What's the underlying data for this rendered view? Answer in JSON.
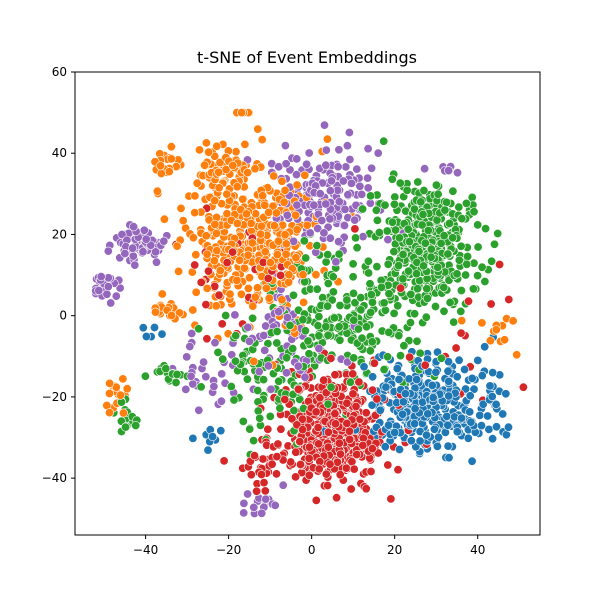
{
  "chart_data": {
    "type": "scatter",
    "title": "t-SNE of Event Embeddings",
    "xlabel": "",
    "ylabel": "",
    "xlim": [
      -57,
      55
    ],
    "ylim": [
      -54,
      60
    ],
    "xticks": [
      -40,
      -20,
      0,
      20,
      40
    ],
    "yticks": [
      -40,
      -20,
      0,
      20,
      40,
      60
    ],
    "tick_labels_x": [
      "−40",
      "−20",
      "0",
      "20",
      "40"
    ],
    "tick_labels_y": [
      "−40",
      "−20",
      "0",
      "20",
      "40",
      "60"
    ],
    "grid": false,
    "legend": "none",
    "series": [
      {
        "color": "#1f77b4",
        "clusters": [
          {
            "center": [
              27,
              -22
            ],
            "spread": [
              9,
              8
            ],
            "count": 330
          },
          {
            "center": [
              44,
              -20
            ],
            "spread": [
              3,
              5
            ],
            "count": 18
          },
          {
            "center": [
              -25,
              -30
            ],
            "spread": [
              3,
              3
            ],
            "count": 8
          },
          {
            "center": [
              -38,
              -4
            ],
            "spread": [
              2,
              2
            ],
            "count": 5
          }
        ]
      },
      {
        "color": "#ff7f0e",
        "clusters": [
          {
            "center": [
              -14,
              18
            ],
            "spread": [
              10,
              12
            ],
            "count": 430
          },
          {
            "center": [
              -22,
              35
            ],
            "spread": [
              5,
              5
            ],
            "count": 60
          },
          {
            "center": [
              -35,
              38
            ],
            "spread": [
              2,
              2
            ],
            "count": 20
          },
          {
            "center": [
              -16,
              52
            ],
            "spread": [
              1.5,
              1
            ],
            "count": 8
          },
          {
            "center": [
              -47,
              -20
            ],
            "spread": [
              2,
              3
            ],
            "count": 18
          },
          {
            "center": [
              -35,
              1
            ],
            "spread": [
              2.5,
              2
            ],
            "count": 16
          },
          {
            "center": [
              45,
              -4
            ],
            "spread": [
              4,
              4
            ],
            "count": 12
          }
        ]
      },
      {
        "color": "#2ca02c",
        "clusters": [
          {
            "center": [
              27,
              17
            ],
            "spread": [
              8,
              11
            ],
            "count": 380
          },
          {
            "center": [
              8,
              0
            ],
            "spread": [
              12,
              12
            ],
            "count": 220
          },
          {
            "center": [
              -10,
              -15
            ],
            "spread": [
              10,
              10
            ],
            "count": 90
          },
          {
            "center": [
              -35,
              -14
            ],
            "spread": [
              3,
              1.5
            ],
            "count": 16
          },
          {
            "center": [
              -44,
              -25
            ],
            "spread": [
              2,
              3
            ],
            "count": 14
          }
        ]
      },
      {
        "color": "#d62728",
        "clusters": [
          {
            "center": [
              5,
              -28
            ],
            "spread": [
              8,
              9
            ],
            "count": 460
          },
          {
            "center": [
              -12,
              -36
            ],
            "spread": [
              5,
              5
            ],
            "count": 30
          },
          {
            "center": [
              -14,
              10
            ],
            "spread": [
              10,
              12
            ],
            "count": 40
          },
          {
            "center": [
              30,
              -5
            ],
            "spread": [
              20,
              12
            ],
            "count": 20
          }
        ]
      },
      {
        "color": "#9467bd",
        "clusters": [
          {
            "center": [
              3,
              30
            ],
            "spread": [
              8,
              8
            ],
            "count": 170
          },
          {
            "center": [
              -42,
              18
            ],
            "spread": [
              4,
              3.5
            ],
            "count": 65
          },
          {
            "center": [
              -50,
              7
            ],
            "spread": [
              3,
              3
            ],
            "count": 30
          },
          {
            "center": [
              -12,
              -46
            ],
            "spread": [
              3,
              2
            ],
            "count": 16
          },
          {
            "center": [
              -7,
              -5
            ],
            "spread": [
              8,
              8
            ],
            "count": 60
          },
          {
            "center": [
              -26,
              -15
            ],
            "spread": [
              6,
              8
            ],
            "count": 30
          },
          {
            "center": [
              30,
              35
            ],
            "spread": [
              4,
              2
            ],
            "count": 6
          }
        ]
      }
    ]
  }
}
